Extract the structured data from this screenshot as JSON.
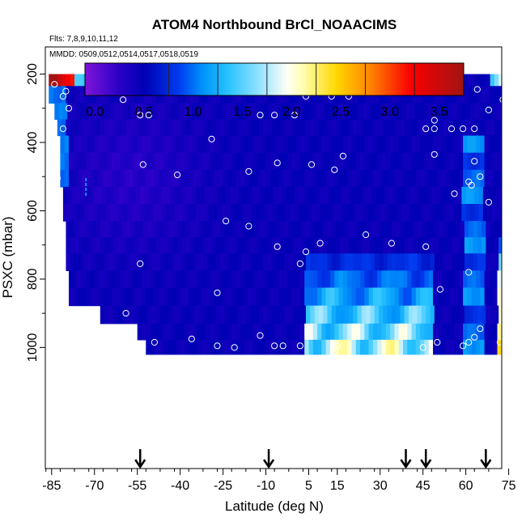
{
  "chart_data": {
    "type": "heatmap",
    "title": "ATOM4 Northbound BrCl_NOAACIMS",
    "flights_note": "Flts: 7,8,9,10,11,12",
    "dates_note": "MMDD: 0509,0512,0514,0517,0518,0519",
    "xlabel": "Latitude (deg N)",
    "ylabel": "PSXC (mbar)",
    "xlim": [
      -87,
      86
    ],
    "ylim": [
      1020,
      0
    ],
    "x_ticks": [
      -85,
      -70,
      -55,
      -40,
      -25,
      -10,
      5,
      15,
      30,
      45,
      60,
      75
    ],
    "y_ticks": [
      200,
      400,
      600,
      800,
      1000
    ],
    "colorbar": {
      "range": [
        -0.1,
        3.75
      ],
      "ticks": [
        0.0,
        0.5,
        1.0,
        1.5,
        2.0,
        2.5,
        3.0,
        3.5
      ],
      "tick_labels": [
        "0.0",
        "0.5",
        "1.0",
        "1.5",
        "2.0",
        "2.5",
        "3.0",
        "3.5"
      ]
    },
    "grid": false,
    "pressure_levels": [
      210,
      260,
      310,
      355,
      405,
      455,
      505,
      555,
      605,
      655,
      700,
      750,
      800,
      850,
      905,
      955,
      1000
    ],
    "lat_limits": [
      [
        -86,
        85
      ],
      [
        -86,
        85
      ],
      [
        -84,
        85
      ],
      [
        -83,
        85
      ],
      [
        -82,
        85
      ],
      [
        -82,
        85
      ],
      [
        -82,
        85
      ],
      [
        -81,
        84
      ],
      [
        -81,
        84
      ],
      [
        -80,
        84
      ],
      [
        -80,
        84
      ],
      [
        -80,
        84
      ],
      [
        -79,
        84
      ],
      [
        -79,
        84
      ],
      [
        -68,
        84
      ],
      [
        -55,
        84
      ],
      [
        -52,
        84
      ]
    ],
    "profile_markers_lat": [
      -54,
      -9,
      39,
      46,
      67
    ],
    "top_marker_lat": -73,
    "sample_points": [
      [
        -80,
        250
      ],
      [
        -44,
        250
      ],
      [
        -32,
        240
      ],
      [
        -27,
        240
      ],
      [
        4,
        265
      ],
      [
        13,
        265
      ],
      [
        19,
        265
      ],
      [
        64,
        245
      ],
      [
        73,
        275
      ],
      [
        79,
        275
      ],
      [
        85,
        275
      ],
      [
        -79,
        300
      ],
      [
        -60,
        275
      ],
      [
        -54,
        320
      ],
      [
        -51,
        320
      ],
      [
        -12,
        320
      ],
      [
        -7,
        320
      ],
      [
        0,
        320
      ],
      [
        49,
        335
      ],
      [
        68,
        305
      ],
      [
        82,
        300
      ],
      [
        -81,
        360
      ],
      [
        -29,
        390
      ],
      [
        46,
        360
      ],
      [
        49,
        360
      ],
      [
        55,
        360
      ],
      [
        59,
        360
      ],
      [
        63,
        360
      ],
      [
        75,
        385
      ],
      [
        79,
        330
      ],
      [
        86,
        335
      ],
      [
        -53,
        465
      ],
      [
        -41,
        495
      ],
      [
        -16,
        485
      ],
      [
        -6,
        460
      ],
      [
        6,
        465
      ],
      [
        17,
        440
      ],
      [
        14,
        480
      ],
      [
        49,
        435
      ],
      [
        63,
        455
      ],
      [
        65,
        500
      ],
      [
        61,
        515
      ],
      [
        56,
        550
      ],
      [
        79,
        460
      ],
      [
        85,
        440
      ],
      [
        -83,
        505
      ],
      [
        -24,
        630
      ],
      [
        -16,
        645
      ],
      [
        -6,
        705
      ],
      [
        4,
        720
      ],
      [
        9,
        695
      ],
      [
        25,
        670
      ],
      [
        34,
        695
      ],
      [
        46,
        705
      ],
      [
        62,
        525
      ],
      [
        68,
        575
      ],
      [
        79,
        630
      ],
      [
        75,
        685
      ],
      [
        -54,
        755
      ],
      [
        -82,
        815
      ],
      [
        -27,
        840
      ],
      [
        2,
        755
      ],
      [
        51,
        830
      ],
      [
        61,
        780
      ],
      [
        -59,
        900
      ],
      [
        -49,
        985
      ],
      [
        -36,
        975
      ],
      [
        -27,
        995
      ],
      [
        -21,
        1000
      ],
      [
        -7,
        995
      ],
      [
        -4,
        995
      ],
      [
        2,
        995
      ],
      [
        15,
        995
      ],
      [
        45,
        1000
      ],
      [
        50,
        985
      ],
      [
        59,
        995
      ],
      [
        61,
        985
      ],
      [
        63,
        970
      ],
      [
        65,
        945
      ],
      [
        72,
        985
      ],
      [
        78,
        995
      ],
      [
        85,
        995
      ],
      [
        -12,
        965
      ],
      [
        -84,
        230
      ],
      [
        -81,
        265
      ]
    ]
  }
}
